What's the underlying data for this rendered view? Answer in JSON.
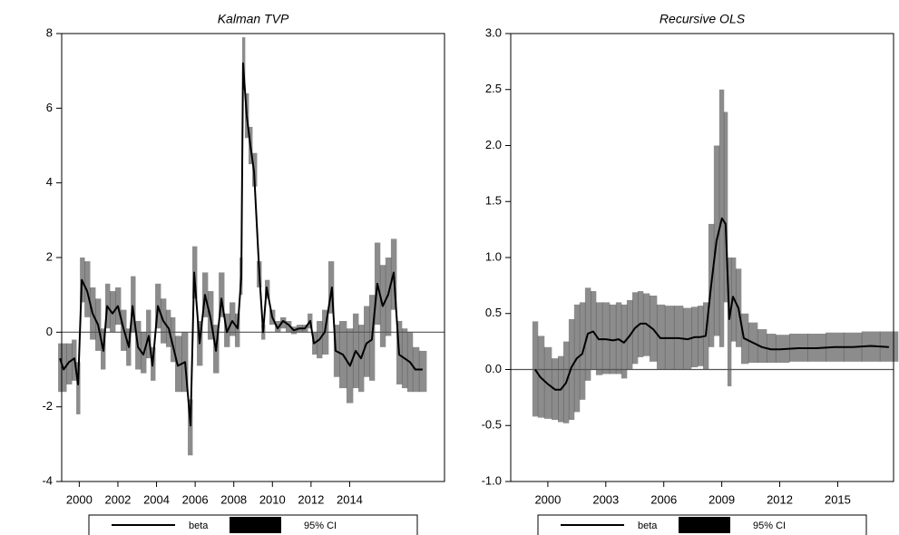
{
  "chart_data": [
    {
      "type": "line",
      "title": "Kalman TVP",
      "x": [
        1999.0,
        1999.19,
        1999.47,
        1999.75,
        1999.94,
        2000.13,
        2000.41,
        2000.69,
        2000.97,
        2001.25,
        2001.44,
        2001.72,
        2002.0,
        2002.29,
        2002.57,
        2002.76,
        2003.04,
        2003.32,
        2003.6,
        2003.79,
        2004.07,
        2004.35,
        2004.63,
        2004.82,
        2005.1,
        2005.48,
        2005.76,
        2005.95,
        2006.23,
        2006.51,
        2006.79,
        2007.08,
        2007.36,
        2007.64,
        2007.92,
        2008.2,
        2008.39,
        2008.48,
        2008.67,
        2008.86,
        2009.05,
        2009.33,
        2009.52,
        2009.7,
        2009.99,
        2010.27,
        2010.55,
        2010.83,
        2011.11,
        2011.39,
        2011.68,
        2011.96,
        2012.15,
        2012.43,
        2012.71,
        2013.08,
        2013.27,
        2013.65,
        2014.02,
        2014.31,
        2014.59,
        2014.87,
        2015.15,
        2015.43,
        2015.71,
        2015.99,
        2016.28,
        2016.56,
        2016.84,
        2017.12,
        2017.4,
        2017.78
      ],
      "series": [
        {
          "name": "beta",
          "color": "#000000",
          "values": [
            -0.7,
            -1.0,
            -0.8,
            -0.7,
            -1.4,
            1.4,
            1.1,
            0.5,
            0.2,
            -0.5,
            0.7,
            0.5,
            0.7,
            0.1,
            -0.4,
            0.7,
            -0.4,
            -0.6,
            -0.1,
            -0.9,
            0.7,
            0.3,
            0.1,
            -0.3,
            -0.9,
            -0.8,
            -2.5,
            1.6,
            -0.3,
            1.0,
            0.4,
            -0.5,
            0.9,
            0.0,
            0.3,
            0.1,
            1.5,
            7.2,
            5.8,
            5.0,
            4.3,
            1.5,
            0.0,
            1.2,
            0.4,
            0.1,
            0.3,
            0.2,
            0.05,
            0.1,
            0.1,
            0.3,
            -0.3,
            -0.2,
            0.0,
            1.2,
            -0.5,
            -0.6,
            -0.9,
            -0.5,
            -0.7,
            -0.3,
            -0.2,
            1.3,
            0.7,
            1.0,
            1.6,
            -0.6,
            -0.7,
            -0.8,
            -1.0,
            -1.0
          ]
        }
      ],
      "band": {
        "name": "95% CI",
        "color": "#000000",
        "lower": [
          -1.6,
          -1.6,
          -1.4,
          -1.3,
          -2.2,
          0.8,
          0.4,
          -0.2,
          -0.5,
          -1.0,
          0.1,
          0,
          0.2,
          -0.5,
          -0.9,
          0,
          -1.0,
          -1.1,
          -0.7,
          -1.3,
          0.1,
          -0.3,
          -0.4,
          -0.8,
          -1.6,
          -1.6,
          -3.3,
          0.9,
          -0.9,
          0.4,
          -0.2,
          -1.1,
          0.4,
          -0.4,
          -0.1,
          -0.4,
          1.0,
          6.5,
          5.2,
          4.5,
          3.9,
          1.2,
          -0.2,
          0.9,
          0.2,
          0,
          0.1,
          0,
          -0.05,
          0,
          0,
          0.1,
          -0.6,
          -0.7,
          -0.6,
          0.5,
          -1.2,
          -1.5,
          -1.9,
          -1.5,
          -1.6,
          -1.2,
          -1.3,
          0.2,
          -0.4,
          -0.1,
          0.6,
          -1.4,
          -1.5,
          -1.6,
          -1.6,
          -1.6
        ],
        "upper": [
          -0.3,
          -0.3,
          -0.3,
          -0.2,
          -0.8,
          2.0,
          1.9,
          1.2,
          0.9,
          0.1,
          1.3,
          1.1,
          1.2,
          0.6,
          0.1,
          1.5,
          0.3,
          0,
          0.6,
          -0.4,
          1.3,
          0.9,
          0.6,
          0.4,
          -0.1,
          0,
          -1.8,
          2.3,
          0.3,
          1.6,
          1.1,
          0.2,
          1.6,
          0.5,
          0.8,
          0.5,
          2.0,
          7.9,
          6.4,
          5.5,
          4.8,
          1.9,
          0.2,
          1.4,
          0.6,
          0.3,
          0.4,
          0.3,
          0.15,
          0.2,
          0.2,
          0.5,
          0,
          0.3,
          0.6,
          1.9,
          0.2,
          0.3,
          0.1,
          0.5,
          0.2,
          0.7,
          1.0,
          2.4,
          1.8,
          2.0,
          2.5,
          0.3,
          0.1,
          0,
          -0.4,
          -0.5
        ]
      },
      "hline": 0,
      "xlim": [
        1999.09,
        2018.91
      ],
      "xticks": [
        2000,
        2002,
        2004,
        2006,
        2008,
        2010,
        2012,
        2014
      ],
      "ylim": [
        -4,
        8
      ],
      "yticks": [
        -4,
        -2,
        0,
        2,
        4,
        6,
        8
      ]
    },
    {
      "type": "line",
      "title": "Recursive OLS",
      "x": [
        1999.34,
        1999.62,
        2000.0,
        2000.38,
        2000.66,
        2000.94,
        2001.22,
        2001.5,
        2001.78,
        2002.07,
        2002.35,
        2002.63,
        2003.0,
        2003.38,
        2003.66,
        2003.94,
        2004.23,
        2004.51,
        2004.79,
        2005.07,
        2005.45,
        2005.82,
        2006.29,
        2006.76,
        2007.23,
        2007.61,
        2007.89,
        2008.17,
        2008.45,
        2008.73,
        2009.01,
        2009.2,
        2009.39,
        2009.58,
        2009.86,
        2010.14,
        2010.61,
        2011.08,
        2011.55,
        2012.02,
        2012.96,
        2013.9,
        2014.84,
        2015.77,
        2016.71,
        2017.65
      ],
      "series": [
        {
          "name": "beta",
          "color": "#000000",
          "values": [
            0.0,
            -0.07,
            -0.13,
            -0.18,
            -0.18,
            -0.12,
            0.02,
            0.1,
            0.14,
            0.32,
            0.34,
            0.27,
            0.27,
            0.26,
            0.27,
            0.24,
            0.3,
            0.37,
            0.41,
            0.41,
            0.36,
            0.28,
            0.28,
            0.28,
            0.27,
            0.29,
            0.29,
            0.3,
            0.75,
            1.15,
            1.35,
            1.3,
            0.45,
            0.65,
            0.55,
            0.28,
            0.24,
            0.2,
            0.18,
            0.18,
            0.19,
            0.19,
            0.2,
            0.2,
            0.21,
            0.2
          ]
        }
      ],
      "band": {
        "name": "95% CI",
        "color": "#000000",
        "lower": [
          -0.42,
          -0.43,
          -0.44,
          -0.45,
          -0.47,
          -0.48,
          -0.45,
          -0.38,
          -0.27,
          -0.1,
          0.0,
          -0.05,
          -0.04,
          -0.04,
          -0.04,
          -0.08,
          0.0,
          0.05,
          0.11,
          0.12,
          0.07,
          0.0,
          0.0,
          0.0,
          0.0,
          0.02,
          0.03,
          0.0,
          0.2,
          0.3,
          0.2,
          0.6,
          -0.15,
          0.25,
          0.2,
          0.05,
          0.06,
          0.06,
          0.06,
          0.06,
          0.07,
          0.07,
          0.07,
          0.07,
          0.07,
          0.07
        ],
        "upper": [
          0.43,
          0.3,
          0.2,
          0.1,
          0.12,
          0.25,
          0.45,
          0.58,
          0.6,
          0.73,
          0.7,
          0.6,
          0.6,
          0.58,
          0.6,
          0.58,
          0.62,
          0.69,
          0.7,
          0.68,
          0.66,
          0.58,
          0.57,
          0.57,
          0.55,
          0.56,
          0.57,
          0.6,
          1.3,
          2.0,
          2.5,
          2.3,
          1.0,
          1.0,
          0.9,
          0.5,
          0.42,
          0.36,
          0.32,
          0.31,
          0.32,
          0.32,
          0.33,
          0.33,
          0.34,
          0.34
        ]
      },
      "hline": 0,
      "xlim": [
        1998.08,
        2017.89
      ],
      "xticks": [
        2000,
        2003,
        2006,
        2009,
        2012,
        2015
      ],
      "ylim": [
        -1,
        3
      ],
      "yticks": [
        {
          "value": -1,
          "label": "-1.0"
        },
        -0.5,
        {
          "value": 0,
          "label": "0.0"
        },
        0.5,
        {
          "value": 1,
          "label": "1.0"
        },
        1.5,
        {
          "value": 2,
          "label": "2.0"
        },
        2.5,
        {
          "value": 3,
          "label": "3.0"
        }
      ]
    }
  ]
}
